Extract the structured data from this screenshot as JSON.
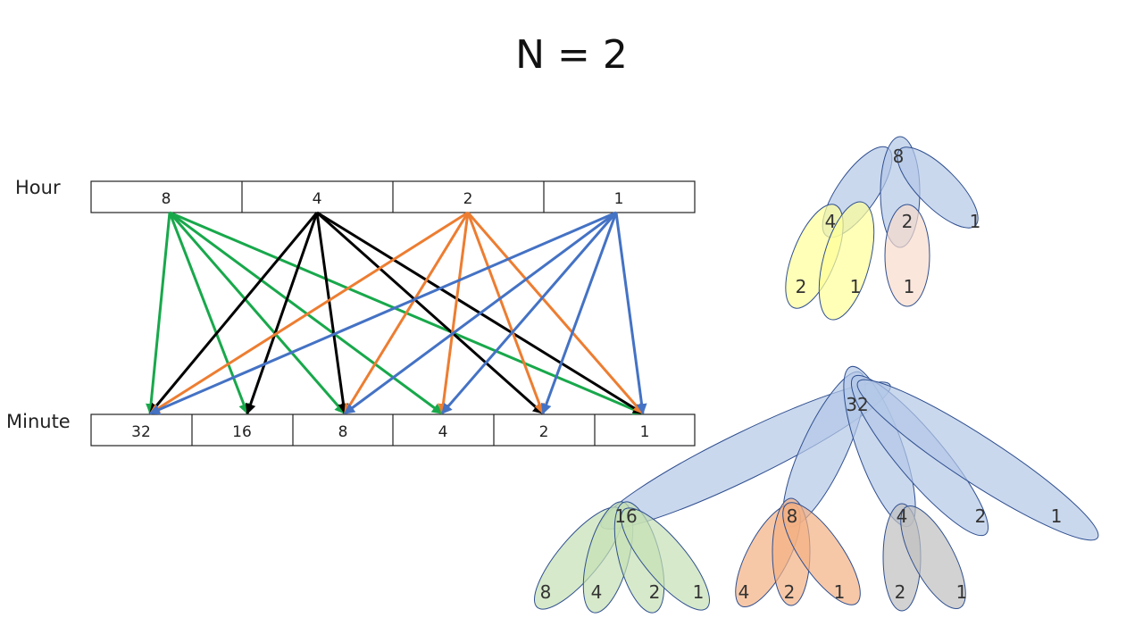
{
  "title": "N = 2",
  "hour": {
    "label": "Hour",
    "cells": [
      "8",
      "4",
      "2",
      "1"
    ]
  },
  "minute": {
    "label": "Minute",
    "cells": [
      "32",
      "16",
      "8",
      "4",
      "2",
      "1"
    ]
  },
  "colors": {
    "hour_8": "#18a84b",
    "hour_4": "#000000",
    "hour_2": "#ed7d31",
    "hour_1": "#4472c4",
    "blue_fill": "#b4c7e7",
    "blue_stroke": "#2f4f8f",
    "yellow_fill": "#ffff99",
    "peach_fill": "#f8dccc",
    "green_fill": "#c5e0b4",
    "orange_fill": "#f4b183",
    "gray_fill": "#bfbfbf"
  },
  "connections": [
    {
      "from": "8",
      "to": [
        "32",
        "16",
        "8",
        "4",
        "1"
      ],
      "color": "#18a84b"
    },
    {
      "from": "4",
      "to": [
        "32",
        "16",
        "8",
        "2",
        "1"
      ],
      "color": "#000000"
    },
    {
      "from": "2",
      "to": [
        "32",
        "8",
        "4",
        "2",
        "1"
      ],
      "color": "#ed7d31"
    },
    {
      "from": "1",
      "to": [
        "32",
        "8",
        "4",
        "2",
        "1"
      ],
      "color": "#4472c4"
    }
  ],
  "hour_tree": {
    "root": "8",
    "children": [
      "4",
      "2",
      "1"
    ],
    "grandchildren_of_4": [
      "2",
      "1"
    ],
    "grandchildren_of_2": [
      "1"
    ]
  },
  "minute_tree": {
    "root": "32",
    "children": [
      "16",
      "8",
      "4",
      "2",
      "1"
    ],
    "grandchildren_of_16": [
      "8",
      "4",
      "2",
      "1"
    ],
    "grandchildren_of_8": [
      "4",
      "2",
      "1"
    ],
    "grandchildren_of_4": [
      "2",
      "1"
    ]
  }
}
